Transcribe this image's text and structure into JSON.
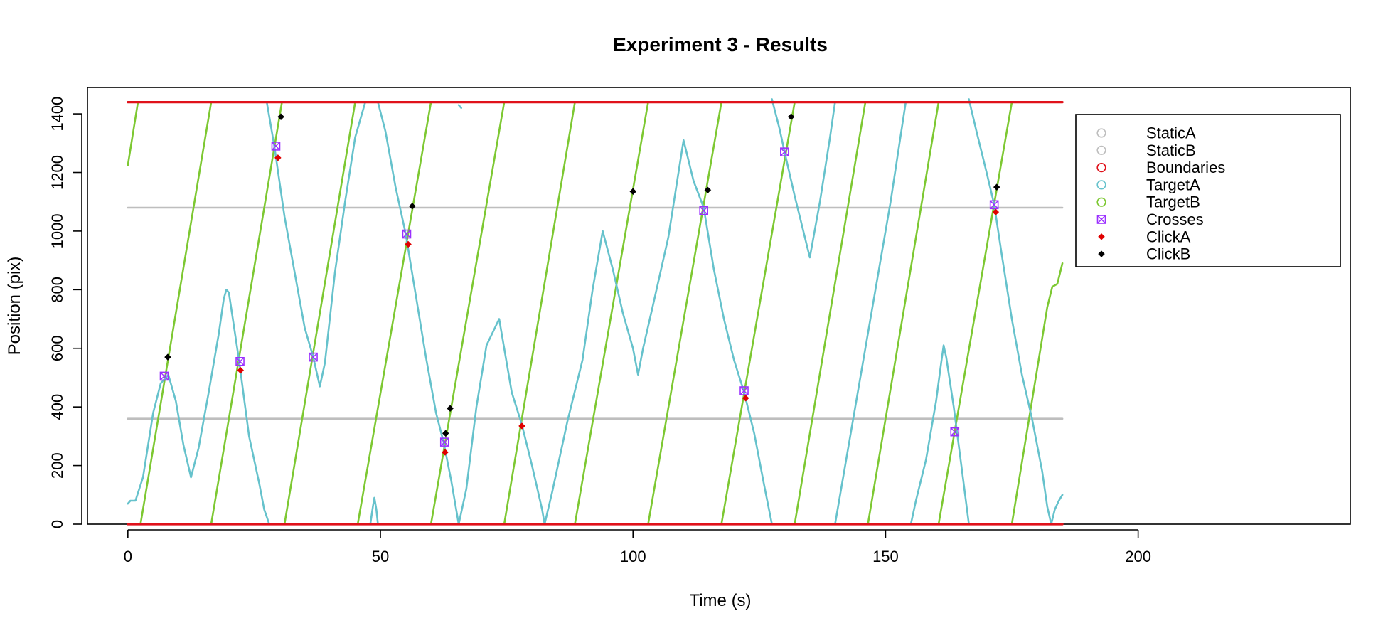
{
  "chart_data": {
    "type": "line",
    "title": "Experiment 3 - Results",
    "xlabel": "Time (s)",
    "ylabel": "Position (pix)",
    "xlim": [
      -8,
      242
    ],
    "ylim": [
      0,
      1490
    ],
    "xticks": [
      0,
      50,
      100,
      150,
      200
    ],
    "xtick_labels": [
      "0",
      "50",
      "100",
      "150",
      "200"
    ],
    "yticks": [
      0,
      200,
      400,
      600,
      800,
      1000,
      1200,
      1400
    ],
    "ytick_labels": [
      "0",
      "200",
      "400",
      "600",
      "800",
      "1000",
      "1200",
      "1400"
    ],
    "grid": false,
    "legend_position": "top-right",
    "legend": [
      {
        "label": "StaticA",
        "marker": "circle",
        "color": "#bebebe"
      },
      {
        "label": "StaticB",
        "marker": "circle",
        "color": "#bebebe"
      },
      {
        "label": "Boundaries",
        "marker": "circle",
        "color": "#e0121b"
      },
      {
        "label": "TargetA",
        "marker": "circle",
        "color": "#66c2cc"
      },
      {
        "label": "TargetB",
        "marker": "circle",
        "color": "#7dc832"
      },
      {
        "label": "Crosses",
        "marker": "crossed-square",
        "color": "#9b30ff"
      },
      {
        "label": "ClickA",
        "marker": "diamond",
        "color": "#e00000"
      },
      {
        "label": "ClickB",
        "marker": "diamond",
        "color": "#000000"
      }
    ],
    "series": [
      {
        "name": "StaticA",
        "color": "#bebebe",
        "kind": "hline",
        "points": [
          [
            0,
            360
          ],
          [
            185,
            360
          ]
        ]
      },
      {
        "name": "StaticB",
        "color": "#bebebe",
        "kind": "hline",
        "points": [
          [
            0,
            1080
          ],
          [
            185,
            1080
          ]
        ]
      },
      {
        "name": "Boundaries",
        "color": "#e0121b",
        "kind": "boundary",
        "segments": [
          [
            [
              0,
              0
            ],
            [
              185,
              0
            ]
          ],
          [
            [
              0,
              1440
            ],
            [
              185,
              1440
            ]
          ]
        ]
      },
      {
        "name": "TargetA",
        "color": "#66c2cc",
        "kind": "polyline",
        "segments": [
          [
            [
              0,
              70
            ],
            [
              0.5,
              80
            ],
            [
              1.5,
              80
            ],
            [
              3,
              160
            ],
            [
              5,
              380
            ],
            [
              6.5,
              480
            ],
            [
              8,
              510
            ],
            [
              9.5,
              420
            ],
            [
              11,
              270
            ],
            [
              12.5,
              160
            ],
            [
              14,
              260
            ],
            [
              16,
              450
            ],
            [
              18,
              650
            ],
            [
              19,
              770
            ],
            [
              19.5,
              800
            ],
            [
              20,
              790
            ],
            [
              22,
              560
            ],
            [
              24,
              300
            ],
            [
              26,
              140
            ],
            [
              27,
              50
            ],
            [
              28,
              0
            ]
          ],
          [
            [
              27.5,
              1440
            ],
            [
              29,
              1290
            ],
            [
              31,
              1050
            ],
            [
              33,
              860
            ],
            [
              35,
              670
            ],
            [
              36.7,
              570
            ],
            [
              38,
              470
            ],
            [
              39,
              550
            ],
            [
              41,
              860
            ],
            [
              43,
              1100
            ],
            [
              45,
              1320
            ],
            [
              47,
              1440
            ]
          ],
          [
            [
              48,
              0
            ],
            [
              48.5,
              60
            ],
            [
              48.8,
              90
            ],
            [
              49.2,
              50
            ],
            [
              49.5,
              0
            ]
          ],
          [
            [
              49.5,
              1440
            ],
            [
              51,
              1340
            ],
            [
              53,
              1150
            ],
            [
              55,
              990
            ],
            [
              57,
              780
            ],
            [
              59,
              570
            ],
            [
              61,
              380
            ],
            [
              62.5,
              280
            ],
            [
              64,
              150
            ],
            [
              65.5,
              0
            ]
          ],
          [
            [
              65.5,
              1430
            ],
            [
              66,
              1420
            ]
          ],
          [
            [
              65.5,
              0
            ],
            [
              67,
              120
            ],
            [
              69,
              400
            ],
            [
              71,
              610
            ],
            [
              73.5,
              700
            ],
            [
              76,
              450
            ],
            [
              78,
              340
            ],
            [
              80,
              200
            ],
            [
              82,
              50
            ],
            [
              82.5,
              0
            ]
          ],
          [
            [
              82.5,
              0
            ],
            [
              84,
              110
            ],
            [
              87,
              350
            ],
            [
              90,
              560
            ],
            [
              92,
              800
            ],
            [
              94,
              1000
            ],
            [
              96,
              870
            ],
            [
              98,
              720
            ],
            [
              100,
              600
            ],
            [
              101,
              510
            ],
            [
              102,
              600
            ],
            [
              104,
              750
            ],
            [
              107,
              980
            ],
            [
              109,
              1200
            ],
            [
              110,
              1310
            ],
            [
              112,
              1170
            ],
            [
              114,
              1080
            ],
            [
              116,
              870
            ],
            [
              118,
              700
            ],
            [
              120,
              560
            ],
            [
              122,
              450
            ],
            [
              124,
              310
            ],
            [
              126,
              130
            ],
            [
              127.5,
              0
            ]
          ],
          [
            [
              127.5,
              1450
            ],
            [
              129,
              1350
            ],
            [
              130,
              1270
            ],
            [
              132,
              1120
            ],
            [
              134,
              980
            ],
            [
              135,
              910
            ],
            [
              137,
              1100
            ],
            [
              139,
              1320
            ],
            [
              140,
              1440
            ]
          ],
          [
            [
              140,
              0
            ],
            [
              142,
              200
            ],
            [
              145,
              500
            ],
            [
              148,
              800
            ],
            [
              151,
              1100
            ],
            [
              154,
              1440
            ]
          ],
          [
            [
              155,
              0
            ],
            [
              156,
              80
            ],
            [
              158,
              220
            ],
            [
              160,
              420
            ],
            [
              161,
              550
            ],
            [
              161.5,
              610
            ],
            [
              162,
              570
            ],
            [
              163.5,
              400
            ],
            [
              165,
              200
            ],
            [
              166.5,
              0
            ]
          ],
          [
            [
              166.5,
              1450
            ],
            [
              168,
              1340
            ],
            [
              170,
              1200
            ],
            [
              171.5,
              1090
            ],
            [
              173,
              920
            ],
            [
              175,
              700
            ],
            [
              177,
              510
            ],
            [
              179,
              360
            ],
            [
              181,
              180
            ],
            [
              182,
              60
            ],
            [
              182.8,
              0
            ]
          ],
          [
            [
              182.8,
              0
            ],
            [
              183.5,
              50
            ],
            [
              184.3,
              80
            ],
            [
              185,
              100
            ]
          ]
        ]
      },
      {
        "name": "TargetB",
        "color": "#7dc832",
        "kind": "polyline",
        "segments": [
          [
            [
              0,
              1225
            ],
            [
              2,
              1440
            ]
          ],
          [
            [
              2.5,
              0
            ],
            [
              16.5,
              1440
            ]
          ],
          [
            [
              16.5,
              0
            ],
            [
              30.5,
              1440
            ]
          ],
          [
            [
              31,
              0
            ],
            [
              45,
              1440
            ]
          ],
          [
            [
              45.5,
              0
            ],
            [
              60,
              1440
            ]
          ],
          [
            [
              60,
              0
            ],
            [
              74.5,
              1440
            ]
          ],
          [
            [
              74.5,
              0
            ],
            [
              88.5,
              1440
            ]
          ],
          [
            [
              88.5,
              0
            ],
            [
              103,
              1440
            ]
          ],
          [
            [
              103,
              0
            ],
            [
              117.5,
              1440
            ]
          ],
          [
            [
              117.5,
              0
            ],
            [
              132,
              1440
            ]
          ],
          [
            [
              132,
              0
            ],
            [
              146,
              1440
            ]
          ],
          [
            [
              146.5,
              0
            ],
            [
              160.5,
              1440
            ]
          ],
          [
            [
              160.5,
              0
            ],
            [
              175,
              1440
            ]
          ],
          [
            [
              175,
              0
            ],
            [
              182,
              740
            ],
            [
              183,
              810
            ],
            [
              184,
              820
            ],
            [
              185,
              890
            ]
          ]
        ]
      }
    ],
    "crosses": [
      {
        "x": 7.2,
        "y": 505
      },
      {
        "x": 22.2,
        "y": 555
      },
      {
        "x": 29.3,
        "y": 1290
      },
      {
        "x": 36.7,
        "y": 570
      },
      {
        "x": 55.2,
        "y": 990
      },
      {
        "x": 62.7,
        "y": 280
      },
      {
        "x": 114,
        "y": 1070
      },
      {
        "x": 122,
        "y": 455
      },
      {
        "x": 130,
        "y": 1270
      },
      {
        "x": 163.7,
        "y": 315
      },
      {
        "x": 171.5,
        "y": 1090
      }
    ],
    "clickA": [
      {
        "x": 22.3,
        "y": 525
      },
      {
        "x": 29.7,
        "y": 1250
      },
      {
        "x": 55.5,
        "y": 955
      },
      {
        "x": 62.8,
        "y": 245
      },
      {
        "x": 78,
        "y": 335
      },
      {
        "x": 122.3,
        "y": 430
      },
      {
        "x": 171.8,
        "y": 1065
      }
    ],
    "clickB": [
      {
        "x": 7.9,
        "y": 570
      },
      {
        "x": 30.3,
        "y": 1390
      },
      {
        "x": 56.3,
        "y": 1085
      },
      {
        "x": 62.9,
        "y": 310
      },
      {
        "x": 63.8,
        "y": 395
      },
      {
        "x": 100,
        "y": 1135
      },
      {
        "x": 114.8,
        "y": 1140
      },
      {
        "x": 131.3,
        "y": 1390
      },
      {
        "x": 172,
        "y": 1150
      }
    ]
  }
}
